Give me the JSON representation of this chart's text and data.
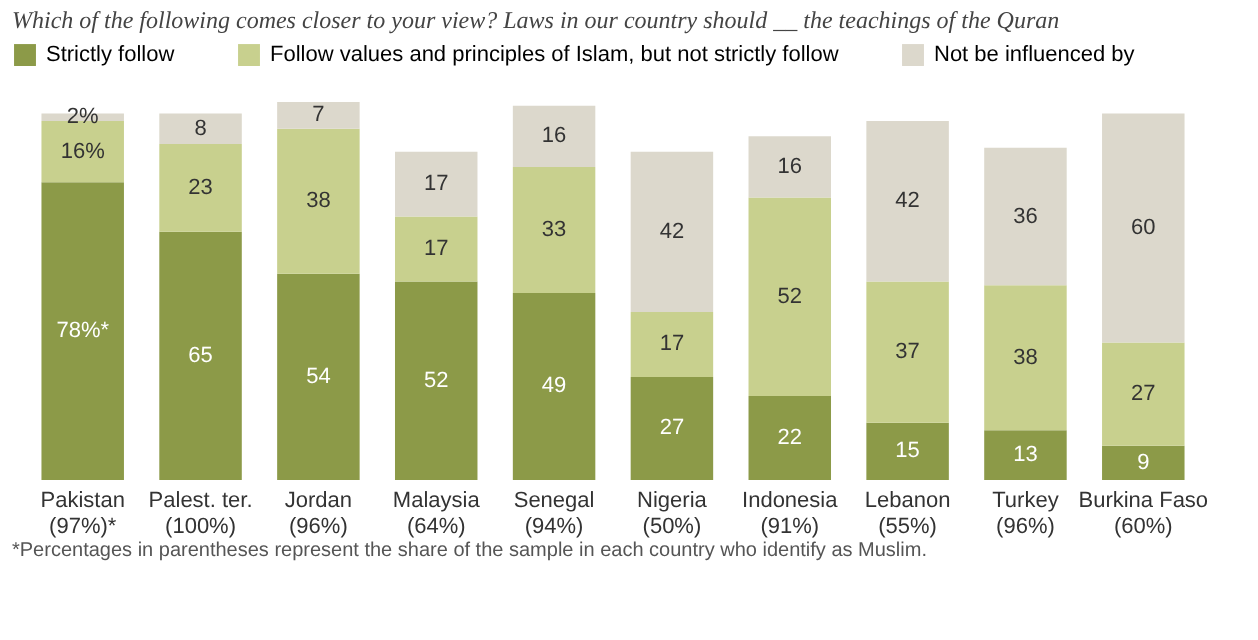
{
  "chart_data": {
    "type": "bar",
    "stacked": true,
    "title": "Which of the following comes closer to your view? Laws in our country should __ the teachings of the Quran",
    "categories": [
      "Pakistan (97%)*",
      "Palest. ter. (100%)",
      "Jordan (96%)",
      "Malaysia (64%)",
      "Senegal (94%)",
      "Nigeria (50%)",
      "Indonesia (91%)",
      "Lebanon (55%)",
      "Turkey (96%)",
      "Burkina Faso (60%)"
    ],
    "series": [
      {
        "name": "Strictly follow",
        "color": "#8c9a48",
        "values": [
          78,
          65,
          54,
          52,
          49,
          27,
          22,
          15,
          13,
          9
        ],
        "value_labels": [
          "78%*",
          "65",
          "54",
          "52",
          "49",
          "27",
          "22",
          "15",
          "13",
          "9"
        ]
      },
      {
        "name": "Follow values and principles of Islam, but not strictly follow",
        "color": "#c8d08e",
        "values": [
          16,
          23,
          38,
          17,
          33,
          17,
          52,
          37,
          38,
          27
        ],
        "value_labels": [
          "16%",
          "23",
          "38",
          "17",
          "33",
          "17",
          "52",
          "37",
          "38",
          "27"
        ]
      },
      {
        "name": "Not be influenced by",
        "color": "#dcd8cc",
        "values": [
          2,
          8,
          7,
          17,
          16,
          42,
          16,
          42,
          36,
          60
        ],
        "value_labels": [
          "2%",
          "8",
          "7",
          "17",
          "16",
          "42",
          "16",
          "42",
          "36",
          "60"
        ]
      }
    ],
    "legend": "top left",
    "annotations": [
      "*Percentages in parentheses represent the share of the sample in each country who identify as Muslim."
    ]
  }
}
